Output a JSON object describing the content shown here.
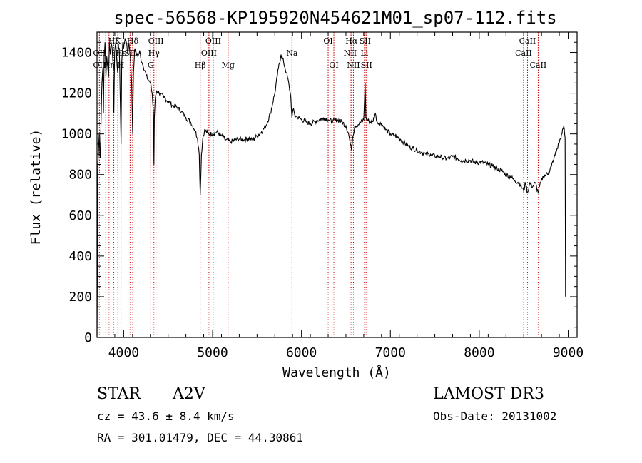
{
  "chart_data": {
    "type": "line",
    "title": "spec-56568-KP195920N454621M01_sp07-112.fits",
    "xlabel": "Wavelength (Å)",
    "ylabel": "Flux (relative)",
    "xlim": [
      3700,
      9100
    ],
    "ylim": [
      0,
      1500
    ],
    "xticks": [
      4000,
      5000,
      6000,
      7000,
      8000,
      9000
    ],
    "yticks": [
      0,
      200,
      400,
      600,
      800,
      1000,
      1200,
      1400
    ],
    "series": [
      {
        "name": "flux",
        "points": [
          [
            3700,
            10
          ],
          [
            3705,
            400
          ],
          [
            3710,
            850
          ],
          [
            3725,
            1000
          ],
          [
            3735,
            880
          ],
          [
            3745,
            1050
          ],
          [
            3755,
            1250
          ],
          [
            3765,
            1320
          ],
          [
            3772,
            1100
          ],
          [
            3780,
            1380
          ],
          [
            3790,
            1450
          ],
          [
            3800,
            1280
          ],
          [
            3810,
            1380
          ],
          [
            3820,
            1330
          ],
          [
            3830,
            1280
          ],
          [
            3840,
            1440
          ],
          [
            3850,
            1390
          ],
          [
            3860,
            1450
          ],
          [
            3870,
            1420
          ],
          [
            3880,
            1350
          ],
          [
            3889,
            1100
          ],
          [
            3898,
            1400
          ],
          [
            3910,
            1450
          ],
          [
            3920,
            1380
          ],
          [
            3933,
            1300
          ],
          [
            3940,
            1440
          ],
          [
            3950,
            1420
          ],
          [
            3960,
            1200
          ],
          [
            3970,
            950
          ],
          [
            3978,
            1350
          ],
          [
            3990,
            1450
          ],
          [
            4000,
            1420
          ],
          [
            4015,
            1470
          ],
          [
            4030,
            1450
          ],
          [
            4045,
            1400
          ],
          [
            4060,
            1440
          ],
          [
            4075,
            1380
          ],
          [
            4090,
            1250
          ],
          [
            4101,
            1000
          ],
          [
            4110,
            1300
          ],
          [
            4125,
            1420
          ],
          [
            4140,
            1400
          ],
          [
            4160,
            1380
          ],
          [
            4180,
            1410
          ],
          [
            4200,
            1350
          ],
          [
            4220,
            1330
          ],
          [
            4240,
            1310
          ],
          [
            4260,
            1290
          ],
          [
            4280,
            1260
          ],
          [
            4300,
            1250
          ],
          [
            4320,
            1200
          ],
          [
            4335,
            1100
          ],
          [
            4340,
            850
          ],
          [
            4345,
            1080
          ],
          [
            4355,
            1170
          ],
          [
            4370,
            1210
          ],
          [
            4400,
            1200
          ],
          [
            4450,
            1180
          ],
          [
            4500,
            1160
          ],
          [
            4550,
            1140
          ],
          [
            4600,
            1130
          ],
          [
            4650,
            1110
          ],
          [
            4700,
            1080
          ],
          [
            4750,
            1060
          ],
          [
            4800,
            1020
          ],
          [
            4830,
            980
          ],
          [
            4850,
            900
          ],
          [
            4861,
            700
          ],
          [
            4875,
            900
          ],
          [
            4890,
            980
          ],
          [
            4910,
            1020
          ],
          [
            4950,
            1000
          ],
          [
            5000,
            1000
          ],
          [
            5050,
            1010
          ],
          [
            5100,
            990
          ],
          [
            5150,
            970
          ],
          [
            5200,
            960
          ],
          [
            5250,
            970
          ],
          [
            5300,
            975
          ],
          [
            5350,
            970
          ],
          [
            5400,
            980
          ],
          [
            5450,
            970
          ],
          [
            5500,
            990
          ],
          [
            5550,
            1010
          ],
          [
            5600,
            1040
          ],
          [
            5650,
            1100
          ],
          [
            5700,
            1200
          ],
          [
            5740,
            1320
          ],
          [
            5770,
            1390
          ],
          [
            5800,
            1350
          ],
          [
            5830,
            1300
          ],
          [
            5860,
            1240
          ],
          [
            5880,
            1180
          ],
          [
            5893,
            1080
          ],
          [
            5905,
            1120
          ],
          [
            5930,
            1090
          ],
          [
            5960,
            1080
          ],
          [
            6000,
            1070
          ],
          [
            6050,
            1060
          ],
          [
            6100,
            1050
          ],
          [
            6150,
            1060
          ],
          [
            6200,
            1070
          ],
          [
            6250,
            1080
          ],
          [
            6300,
            1070
          ],
          [
            6350,
            1060
          ],
          [
            6400,
            1070
          ],
          [
            6450,
            1060
          ],
          [
            6500,
            1040
          ],
          [
            6530,
            1000
          ],
          [
            6550,
            950
          ],
          [
            6563,
            920
          ],
          [
            6575,
            980
          ],
          [
            6600,
            1040
          ],
          [
            6650,
            1050
          ],
          [
            6700,
            1070
          ],
          [
            6716,
            1250
          ],
          [
            6725,
            1080
          ],
          [
            6760,
            1060
          ],
          [
            6800,
            1060
          ],
          [
            6830,
            1100
          ],
          [
            6850,
            1060
          ],
          [
            6870,
            1050
          ],
          [
            6900,
            1050
          ],
          [
            6950,
            1020
          ],
          [
            7000,
            1000
          ],
          [
            7050,
            990
          ],
          [
            7100,
            980
          ],
          [
            7150,
            960
          ],
          [
            7200,
            940
          ],
          [
            7250,
            930
          ],
          [
            7300,
            920
          ],
          [
            7350,
            910
          ],
          [
            7400,
            900
          ],
          [
            7450,
            900
          ],
          [
            7500,
            890
          ],
          [
            7550,
            890
          ],
          [
            7600,
            880
          ],
          [
            7650,
            880
          ],
          [
            7700,
            890
          ],
          [
            7750,
            880
          ],
          [
            7800,
            870
          ],
          [
            7850,
            870
          ],
          [
            7900,
            870
          ],
          [
            7950,
            860
          ],
          [
            8000,
            860
          ],
          [
            8050,
            860
          ],
          [
            8100,
            850
          ],
          [
            8150,
            840
          ],
          [
            8200,
            830
          ],
          [
            8250,
            820
          ],
          [
            8300,
            800
          ],
          [
            8350,
            790
          ],
          [
            8400,
            770
          ],
          [
            8450,
            760
          ],
          [
            8498,
            720
          ],
          [
            8520,
            760
          ],
          [
            8542,
            710
          ],
          [
            8570,
            760
          ],
          [
            8600,
            740
          ],
          [
            8630,
            760
          ],
          [
            8662,
            710
          ],
          [
            8690,
            760
          ],
          [
            8720,
            790
          ],
          [
            8750,
            800
          ],
          [
            8780,
            810
          ],
          [
            8810,
            840
          ],
          [
            8840,
            880
          ],
          [
            8870,
            920
          ],
          [
            8900,
            960
          ],
          [
            8930,
            1000
          ],
          [
            8950,
            1040
          ],
          [
            8965,
            980
          ],
          [
            8970,
            200
          ]
        ]
      }
    ],
    "annotations": [
      {
        "label": "Hζ",
        "x": 3889,
        "row": 1
      },
      {
        "label": "OII",
        "x": 3727,
        "row": 2
      },
      {
        "label": "Hε",
        "x": 3970,
        "row": 2
      },
      {
        "label": "OII",
        "x": 3727,
        "row": 3
      },
      {
        "label": "Hη",
        "x": 3835,
        "row": 3
      },
      {
        "label": "K",
        "x": 3934,
        "row": 1
      },
      {
        "label": "Hδ",
        "x": 4101,
        "row": 1
      },
      {
        "label": "SII",
        "x": 4072,
        "row": 2
      },
      {
        "label": "H",
        "x": 3969,
        "row": 3
      },
      {
        "label": "OIII",
        "x": 4363,
        "row": 1
      },
      {
        "label": "Hγ",
        "x": 4340,
        "row": 2
      },
      {
        "label": "G",
        "x": 4304,
        "row": 3
      },
      {
        "label": "OIII",
        "x": 5007,
        "row": 1
      },
      {
        "label": "OIII",
        "x": 4959,
        "row": 2
      },
      {
        "label": "Hβ",
        "x": 4861,
        "row": 3
      },
      {
        "label": "Mg",
        "x": 5175,
        "row": 3
      },
      {
        "label": "Na",
        "x": 5893,
        "row": 2
      },
      {
        "label": "OI",
        "x": 6300,
        "row": 1
      },
      {
        "label": "OI",
        "x": 6364,
        "row": 3
      },
      {
        "label": "Hα",
        "x": 6563,
        "row": 1
      },
      {
        "label": "SII",
        "x": 6716,
        "row": 1
      },
      {
        "label": "NII",
        "x": 6548,
        "row": 2
      },
      {
        "label": "Li",
        "x": 6708,
        "row": 2
      },
      {
        "label": "NII",
        "x": 6584,
        "row": 3
      },
      {
        "label": "SII",
        "x": 6731,
        "row": 3
      },
      {
        "label": "CaII",
        "x": 8542,
        "row": 1
      },
      {
        "label": "CaII",
        "x": 8498,
        "row": 2
      },
      {
        "label": "CaII",
        "x": 8662,
        "row": 3
      }
    ],
    "line_markers": [
      3727,
      3798,
      3835,
      3889,
      3934,
      3970,
      4072,
      4101,
      4304,
      4340,
      4363,
      4861,
      4959,
      5007,
      5175,
      5893,
      6300,
      6364,
      6548,
      6563,
      6584,
      6708,
      6716,
      6731,
      8498,
      8542,
      8662
    ],
    "grid": false
  },
  "info": {
    "object_type": "STAR",
    "subclass": "A2V",
    "survey": "LAMOST DR3",
    "redshift": "cz = 43.6 ± 8.4 km/s",
    "obs_date": "Obs-Date: 20131002",
    "coords": "RA = 301.01479, DEC =  44.30861"
  },
  "colors": {
    "trace": "#000000",
    "marker": "#cc0000",
    "background": "#ffffff"
  }
}
